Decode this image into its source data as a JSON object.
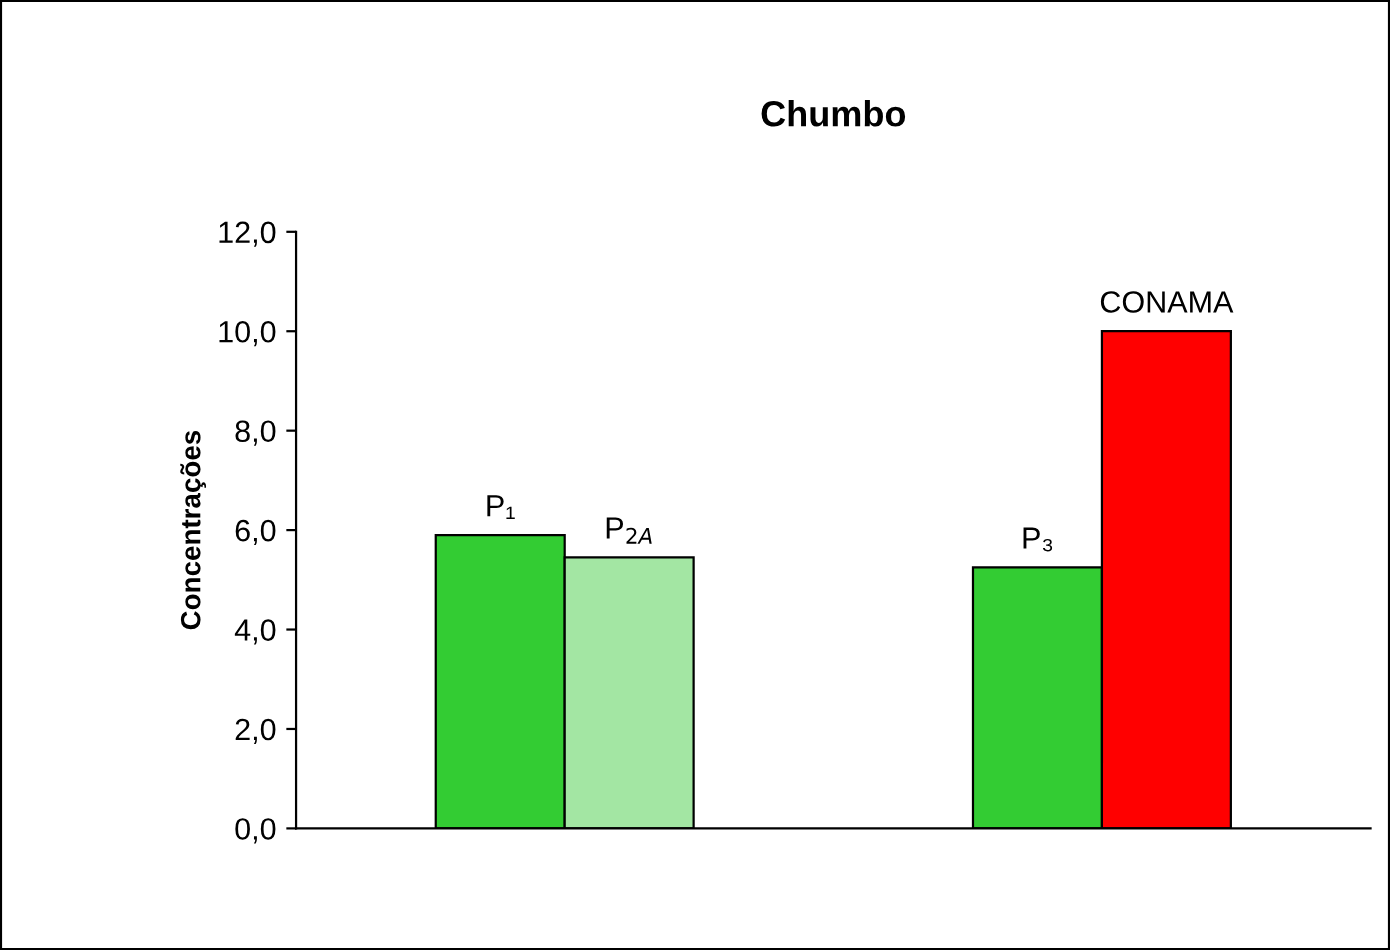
{
  "chart_data": {
    "type": "bar",
    "title": "Chumbo",
    "ylabel": "Concentrações",
    "categories": [
      null,
      null
    ],
    "series": [
      {
        "name": "P₁",
        "color": "#33cc33",
        "values": [
          5.9,
          null
        ]
      },
      {
        "name": "P$_{2A}$",
        "color": "#a3e6a3",
        "values": [
          5.45,
          null
        ]
      },
      {
        "name": "P₃",
        "color": "#33cc33",
        "values": [
          null,
          5.25
        ]
      },
      {
        "name": "CONAMA",
        "color": "#ff0000",
        "values": [
          null,
          10.0
        ]
      }
    ],
    "ylim": [
      0,
      12
    ],
    "yticks": [
      {
        "value": 0,
        "label": "0,0"
      },
      {
        "value": 2,
        "label": "2,0"
      },
      {
        "value": 4,
        "label": "4,0"
      },
      {
        "value": 6,
        "label": "6,0"
      },
      {
        "value": 8,
        "label": "8,0"
      },
      {
        "value": 10,
        "label": "10,0"
      },
      {
        "value": 12,
        "label": "12,0"
      }
    ],
    "grid": false,
    "legend": false
  }
}
